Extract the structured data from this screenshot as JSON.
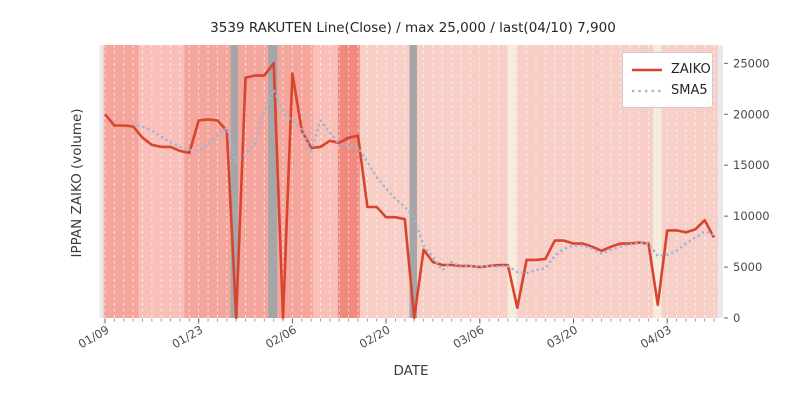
{
  "chart_data": {
    "type": "line",
    "title": "3539 RAKUTEN Line(Close) / max 25,000 / last(04/10) 7,900",
    "xlabel": "DATE",
    "ylabel": "IPPAN ZAIKO (volume)",
    "ylim": [
      0,
      26800
    ],
    "y_ticks": [
      0,
      5000,
      10000,
      15000,
      20000,
      25000
    ],
    "x_tick_positions": [
      0,
      10,
      20,
      30,
      40,
      50,
      60
    ],
    "x_tick_labels": [
      "01/09",
      "01/23",
      "02/06",
      "02/20",
      "03/06",
      "03/20",
      "04/03"
    ],
    "n_points": 66,
    "last_label": "last(04/10) 7,900",
    "max_label": "max 25,000",
    "plot_bg": "#e9e9ef",
    "grid": {
      "vertical_per_day": true,
      "color": "#ffffff",
      "dashed": true
    },
    "series": [
      {
        "name": "ZAIKO",
        "style": "solid",
        "color": "#d9442f",
        "start_index": 0,
        "values": [
          20000,
          18900,
          18900,
          18800,
          17700,
          17000,
          16800,
          16800,
          16400,
          16200,
          19400,
          19500,
          19400,
          18400,
          0,
          23600,
          23800,
          23800,
          25000,
          0,
          24000,
          18400,
          16700,
          16800,
          17400,
          17200,
          17700,
          17900,
          10900,
          10900,
          9900,
          9900,
          9700,
          0,
          6700,
          5500,
          5200,
          5200,
          5100,
          5100,
          5000,
          5100,
          5200,
          5200,
          1000,
          5700,
          5700,
          5800,
          7600,
          7600,
          7300,
          7300,
          7000,
          6600,
          7000,
          7300,
          7300,
          7400,
          7300,
          1300,
          8600,
          8600,
          8400,
          8700,
          9600,
          7900
        ]
      },
      {
        "name": "SMA5",
        "style": "dotted",
        "color": "#9cb6d8",
        "start_index": 3,
        "values": [
          19000,
          18800,
          18400,
          17800,
          17250,
          16800,
          16500,
          16450,
          17150,
          17900,
          18650,
          15300,
          16100,
          17100,
          20400,
          22400,
          20200,
          19300,
          18500,
          16300,
          19400,
          18200,
          17100,
          16900,
          16800,
          15300,
          13800,
          12700,
          11700,
          10900,
          9900,
          7100,
          6000,
          4700,
          5500,
          5000,
          5100,
          5050,
          5100,
          5050,
          5100,
          4500,
          4400,
          4700,
          4900,
          6100,
          6800,
          7100,
          7100,
          6800,
          6300,
          6700,
          7000,
          7200,
          7350,
          7300,
          6100,
          6200,
          6600,
          7300,
          7900,
          8500,
          8200
        ]
      }
    ],
    "background_bands": [
      {
        "from": -0.15,
        "to": 3.6,
        "color": "#f5a69c",
        "overlay": false
      },
      {
        "from": 3.6,
        "to": 8.45,
        "color": "#f8c0b8",
        "overlay": false
      },
      {
        "from": 8.45,
        "to": 13.4,
        "color": "#f5a69c",
        "overlay": false
      },
      {
        "from": 13.4,
        "to": 14.2,
        "color": "#a6a6a8",
        "overlay": true
      },
      {
        "from": 14.2,
        "to": 17.4,
        "color": "#f5a69c",
        "overlay": false
      },
      {
        "from": 17.4,
        "to": 18.4,
        "color": "#a6a6a8",
        "overlay": true
      },
      {
        "from": 18.4,
        "to": 22.2,
        "color": "#f5a69c",
        "overlay": false
      },
      {
        "from": 22.2,
        "to": 24.85,
        "color": "#f8c0b8",
        "overlay": false
      },
      {
        "from": 24.85,
        "to": 27.2,
        "color": "#f0897e",
        "overlay": false
      },
      {
        "from": 27.2,
        "to": 32.5,
        "color": "#f8cfc7",
        "overlay": false
      },
      {
        "from": 32.5,
        "to": 33.3,
        "color": "#a6a6a8",
        "overlay": true
      },
      {
        "from": 33.3,
        "to": 43.0,
        "color": "#f8cfc7",
        "overlay": false
      },
      {
        "from": 43.0,
        "to": 43.9,
        "color": "#f5ecdc",
        "overlay": true
      },
      {
        "from": 43.9,
        "to": 58.5,
        "color": "#f8cfc7",
        "overlay": false
      },
      {
        "from": 58.5,
        "to": 59.4,
        "color": "#f5ecdc",
        "overlay": true
      },
      {
        "from": 59.4,
        "to": 65.4,
        "color": "#f8cfc7",
        "overlay": false
      }
    ]
  },
  "legend": {
    "items": [
      {
        "label": "ZAIKO"
      },
      {
        "label": "SMA5"
      }
    ]
  }
}
